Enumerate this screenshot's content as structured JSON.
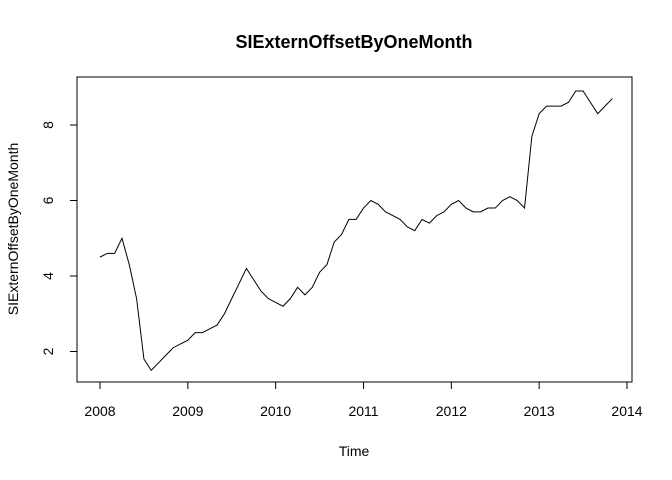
{
  "chart_data": {
    "type": "line",
    "title": "SIExternOffsetByOneMonth",
    "xlabel": "Time",
    "ylabel": "SIExternOffsetByOneMonth",
    "xlim": [
      2008,
      2014
    ],
    "ylim": [
      1.5,
      9.0
    ],
    "x_ticks": [
      2008,
      2009,
      2010,
      2011,
      2012,
      2013,
      2014
    ],
    "y_ticks": [
      2,
      4,
      6,
      8
    ],
    "grid": false,
    "legend": "none",
    "series": [
      {
        "x": [
          2008.0,
          2008.0833,
          2008.1667,
          2008.25,
          2008.3333,
          2008.4167,
          2008.5,
          2008.5833,
          2008.6667,
          2008.75,
          2008.8333,
          2008.9167,
          2009.0,
          2009.0833,
          2009.1667,
          2009.25,
          2009.3333,
          2009.4167,
          2009.5,
          2009.5833,
          2009.6667,
          2009.75,
          2009.8333,
          2009.9167,
          2010.0,
          2010.0833,
          2010.1667,
          2010.25,
          2010.3333,
          2010.4167,
          2010.5,
          2010.5833,
          2010.6667,
          2010.75,
          2010.8333,
          2010.9167,
          2011.0,
          2011.0833,
          2011.1667,
          2011.25,
          2011.3333,
          2011.4167,
          2011.5,
          2011.5833,
          2011.6667,
          2011.75,
          2011.8333,
          2011.9167,
          2012.0,
          2012.0833,
          2012.1667,
          2012.25,
          2012.3333,
          2012.4167,
          2012.5,
          2012.5833,
          2012.6667,
          2012.75,
          2012.8333,
          2012.9167,
          2013.0,
          2013.0833,
          2013.1667,
          2013.25,
          2013.3333,
          2013.4167,
          2013.5,
          2013.5833,
          2013.6667,
          2013.75,
          2013.8333
        ],
        "values": [
          4.5,
          4.6,
          4.6,
          5.0,
          4.3,
          3.4,
          1.8,
          1.5,
          1.7,
          1.9,
          2.1,
          2.2,
          2.3,
          2.5,
          2.5,
          2.6,
          2.7,
          3.0,
          3.4,
          3.8,
          4.2,
          3.9,
          3.6,
          3.4,
          3.3,
          3.2,
          3.4,
          3.7,
          3.5,
          3.7,
          4.1,
          4.3,
          4.9,
          5.1,
          5.5,
          5.5,
          5.8,
          6.0,
          5.9,
          5.7,
          5.6,
          5.5,
          5.3,
          5.2,
          5.5,
          5.4,
          5.6,
          5.7,
          5.9,
          6.0,
          5.8,
          5.7,
          5.7,
          5.8,
          5.8,
          6.0,
          6.1,
          6.0,
          5.8,
          7.7,
          8.3,
          8.5,
          8.5,
          8.5,
          8.6,
          8.9,
          8.9,
          8.6,
          8.3,
          8.5,
          8.7
        ]
      }
    ]
  }
}
